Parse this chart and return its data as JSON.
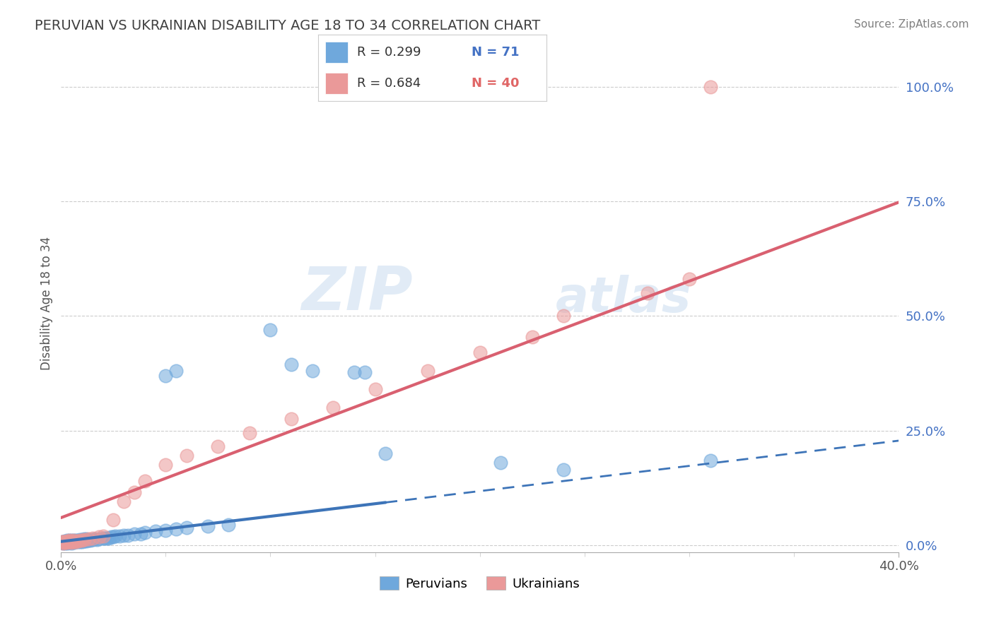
{
  "title": "PERUVIAN VS UKRAINIAN DISABILITY AGE 18 TO 34 CORRELATION CHART",
  "source": "Source: ZipAtlas.com",
  "ylabel": "Disability Age 18 to 34",
  "yticks_labels": [
    "0.0%",
    "25.0%",
    "50.0%",
    "75.0%",
    "100.0%"
  ],
  "ytick_vals": [
    0.0,
    0.25,
    0.5,
    0.75,
    1.0
  ],
  "xmin": 0.0,
  "xmax": 0.4,
  "ymin": -0.015,
  "ymax": 1.07,
  "peruvian_color": "#6fa8dc",
  "ukrainian_color": "#ea9999",
  "peruvian_line_color": "#3d74b8",
  "ukrainian_line_color": "#d96070",
  "legend_label_peruvian": "Peruvians",
  "legend_label_ukrainian": "Ukrainians",
  "watermark_zip": "ZIP",
  "watermark_atlas": "atlas",
  "peru_line_intercept": 0.008,
  "peru_line_slope": 0.55,
  "peru_solid_xend": 0.155,
  "ukr_line_intercept": 0.06,
  "ukr_line_slope": 1.72,
  "peruvian_scatter_x": [
    0.001,
    0.001,
    0.001,
    0.001,
    0.002,
    0.002,
    0.002,
    0.002,
    0.002,
    0.003,
    0.003,
    0.003,
    0.003,
    0.004,
    0.004,
    0.004,
    0.005,
    0.005,
    0.005,
    0.006,
    0.006,
    0.006,
    0.007,
    0.007,
    0.008,
    0.008,
    0.009,
    0.009,
    0.01,
    0.01,
    0.011,
    0.011,
    0.012,
    0.012,
    0.013,
    0.014,
    0.015,
    0.016,
    0.017,
    0.018,
    0.02,
    0.021,
    0.022,
    0.023,
    0.024,
    0.025,
    0.026,
    0.028,
    0.03,
    0.032,
    0.035,
    0.038,
    0.04,
    0.045,
    0.05,
    0.055,
    0.06,
    0.07,
    0.08,
    0.05,
    0.055,
    0.1,
    0.11,
    0.12,
    0.14,
    0.145,
    0.155,
    0.21,
    0.24,
    0.31
  ],
  "peruvian_scatter_y": [
    0.005,
    0.006,
    0.007,
    0.008,
    0.005,
    0.006,
    0.007,
    0.008,
    0.009,
    0.005,
    0.006,
    0.008,
    0.01,
    0.006,
    0.008,
    0.01,
    0.005,
    0.007,
    0.01,
    0.006,
    0.008,
    0.01,
    0.007,
    0.01,
    0.007,
    0.01,
    0.008,
    0.012,
    0.008,
    0.012,
    0.009,
    0.013,
    0.009,
    0.013,
    0.01,
    0.011,
    0.012,
    0.013,
    0.012,
    0.013,
    0.015,
    0.015,
    0.016,
    0.016,
    0.018,
    0.018,
    0.02,
    0.02,
    0.022,
    0.022,
    0.025,
    0.025,
    0.028,
    0.03,
    0.032,
    0.035,
    0.038,
    0.042,
    0.045,
    0.37,
    0.38,
    0.47,
    0.395,
    0.38,
    0.378,
    0.378,
    0.2,
    0.18,
    0.165,
    0.185
  ],
  "ukrainian_scatter_x": [
    0.001,
    0.001,
    0.001,
    0.002,
    0.002,
    0.003,
    0.003,
    0.004,
    0.004,
    0.005,
    0.005,
    0.006,
    0.006,
    0.007,
    0.008,
    0.009,
    0.01,
    0.011,
    0.013,
    0.015,
    0.018,
    0.02,
    0.025,
    0.03,
    0.035,
    0.04,
    0.05,
    0.06,
    0.075,
    0.09,
    0.11,
    0.13,
    0.15,
    0.175,
    0.2,
    0.225,
    0.24,
    0.28,
    0.3,
    0.31
  ],
  "ukrainian_scatter_y": [
    0.005,
    0.007,
    0.008,
    0.006,
    0.008,
    0.006,
    0.009,
    0.007,
    0.01,
    0.006,
    0.009,
    0.007,
    0.01,
    0.008,
    0.009,
    0.01,
    0.01,
    0.012,
    0.013,
    0.015,
    0.018,
    0.02,
    0.055,
    0.095,
    0.115,
    0.14,
    0.175,
    0.195,
    0.215,
    0.245,
    0.275,
    0.3,
    0.34,
    0.38,
    0.42,
    0.455,
    0.5,
    0.55,
    0.58,
    1.0
  ]
}
